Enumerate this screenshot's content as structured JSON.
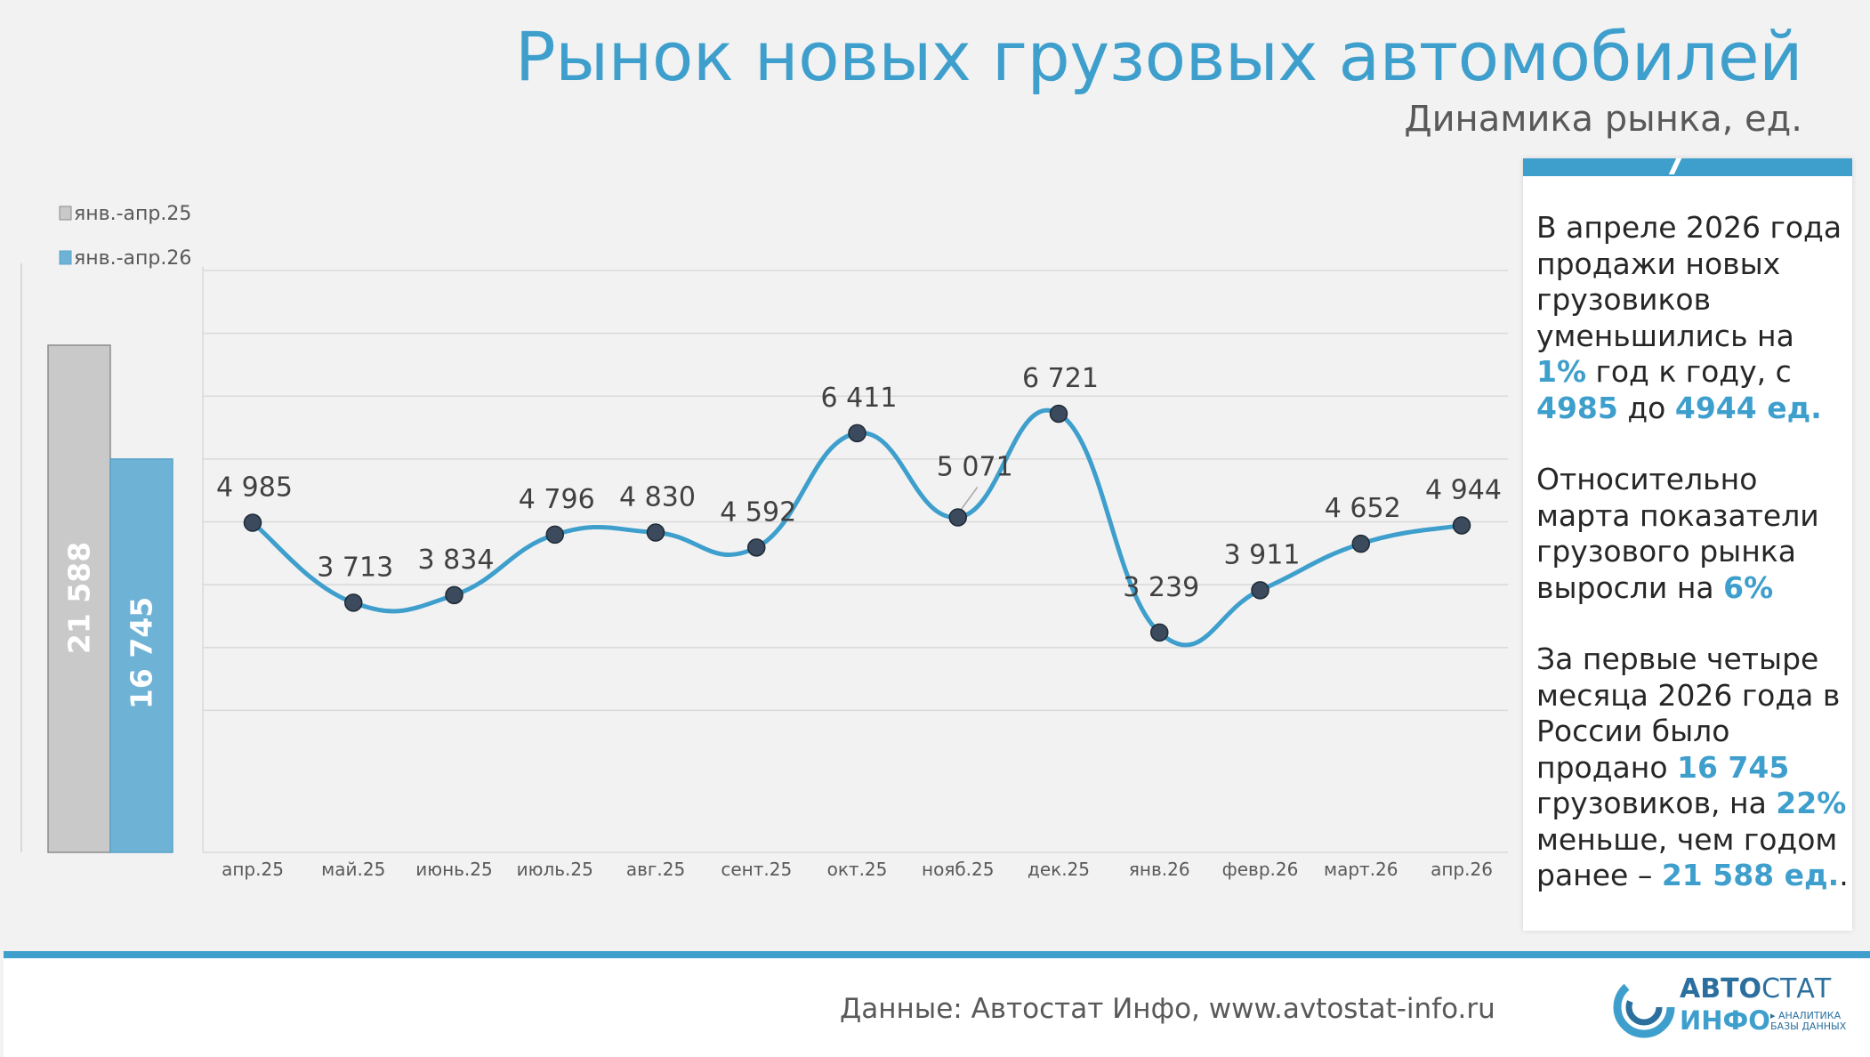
{
  "header": {
    "title": "Рынок новых грузовых автомобилей",
    "subtitle": "Динамика рынка, ед."
  },
  "colors": {
    "accent": "#3e9fcd",
    "bar_2025": "#c9c9c9",
    "bar_2026": "#6eb3d6",
    "line": "#3e9fcd",
    "point": "#3b4a5c",
    "grid": "#d9d9d9"
  },
  "chart_data": [
    {
      "type": "bar",
      "categories": [
        "янв.-апр.25",
        "янв.-апр.26"
      ],
      "values": [
        21588,
        16745
      ],
      "value_labels": [
        "21 588",
        "16 745"
      ],
      "legend": [
        "янв.-апр.25",
        "янв.-апр.26"
      ],
      "legend_position": "top-left",
      "ylim": [
        0,
        25000
      ]
    },
    {
      "type": "line",
      "categories": [
        "апр.25",
        "май.25",
        "июнь.25",
        "июль.25",
        "авг.25",
        "сент.25",
        "окт.25",
        "нояб.25",
        "дек.25",
        "янв.26",
        "февр.26",
        "март.26",
        "апр.26"
      ],
      "values": [
        4985,
        3713,
        3834,
        4796,
        4830,
        4592,
        6411,
        5071,
        6721,
        3239,
        3911,
        4652,
        4944
      ],
      "value_labels": [
        "4 985",
        "3 713",
        "3 834",
        "4 796",
        "4 830",
        "4 592",
        "6 411",
        "5 071",
        "6 721",
        "3 239",
        "3 911",
        "4 652",
        "4 944"
      ],
      "ylim": [
        1000,
        9000
      ],
      "grid": true
    }
  ],
  "info": {
    "p1_a": "В апреле 2026 года продажи новых грузовиков уменьшились на ",
    "p1_b": "1%",
    "p1_c": " год к году, с ",
    "p1_d": "4985",
    "p1_e": " до ",
    "p1_f": "4944 ед.",
    "p2_a": "Относительно марта показатели грузового  рынка выросли на ",
    "p2_b": "6%",
    "p3_a": "За первые четыре месяца 2026 года в России было продано ",
    "p3_b": "16 745",
    "p3_c": " грузовиков, на ",
    "p3_d": "22%",
    "p3_e": " меньше, чем годом ранее – ",
    "p3_f": "21 588 ед.",
    "p3_g": "."
  },
  "footer": {
    "source": "Данные: Автостат Инфо, www.avtostat-info.ru",
    "logo_part1": "АВТО",
    "logo_part2": "СТАТ",
    "logo_sub": "ИНФО",
    "logo_tag1": "▸ АНАЛИТИКА",
    "logo_tag2": "БАЗЫ ДАННЫХ"
  }
}
